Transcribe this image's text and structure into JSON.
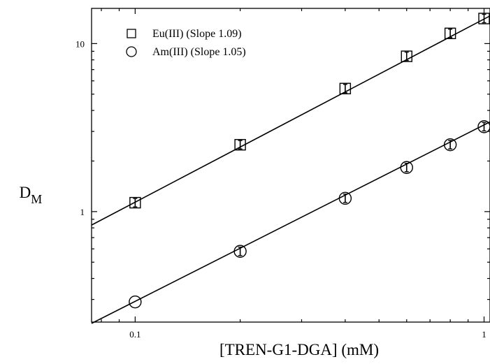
{
  "chart_data": {
    "type": "scatter",
    "xlabel": "[TREN-G1-DGA] (mM)",
    "ylabel_main": "D",
    "ylabel_sub": "M",
    "xscale": "log",
    "yscale": "log",
    "xlim": [
      0.075,
      1.04
    ],
    "ylim": [
      0.22,
      16.2
    ],
    "x_ticks": [
      0.1,
      1
    ],
    "x_tick_labels": [
      "0.1",
      "1"
    ],
    "y_ticks": [
      1,
      10
    ],
    "y_tick_labels": [
      "1",
      "10"
    ],
    "grid": false,
    "legend_position": "top-left",
    "series": [
      {
        "name": "Eu(III) (Slope 1.09)",
        "marker": "square",
        "x": [
          0.1,
          0.2,
          0.4,
          0.6,
          0.8,
          1.0
        ],
        "y": [
          1.13,
          2.5,
          5.4,
          8.4,
          11.5,
          14.1
        ],
        "fit": {
          "slope": 1.09,
          "intercept_at_x1": 14.0
        }
      },
      {
        "name": "Am(III) (Slope 1.05)",
        "marker": "circle",
        "x": [
          0.1,
          0.2,
          0.4,
          0.6,
          0.8,
          1.0
        ],
        "y": [
          0.29,
          0.58,
          1.2,
          1.83,
          2.5,
          3.2
        ],
        "fit": {
          "slope": 1.05,
          "intercept_at_x1": 3.28
        }
      }
    ]
  }
}
